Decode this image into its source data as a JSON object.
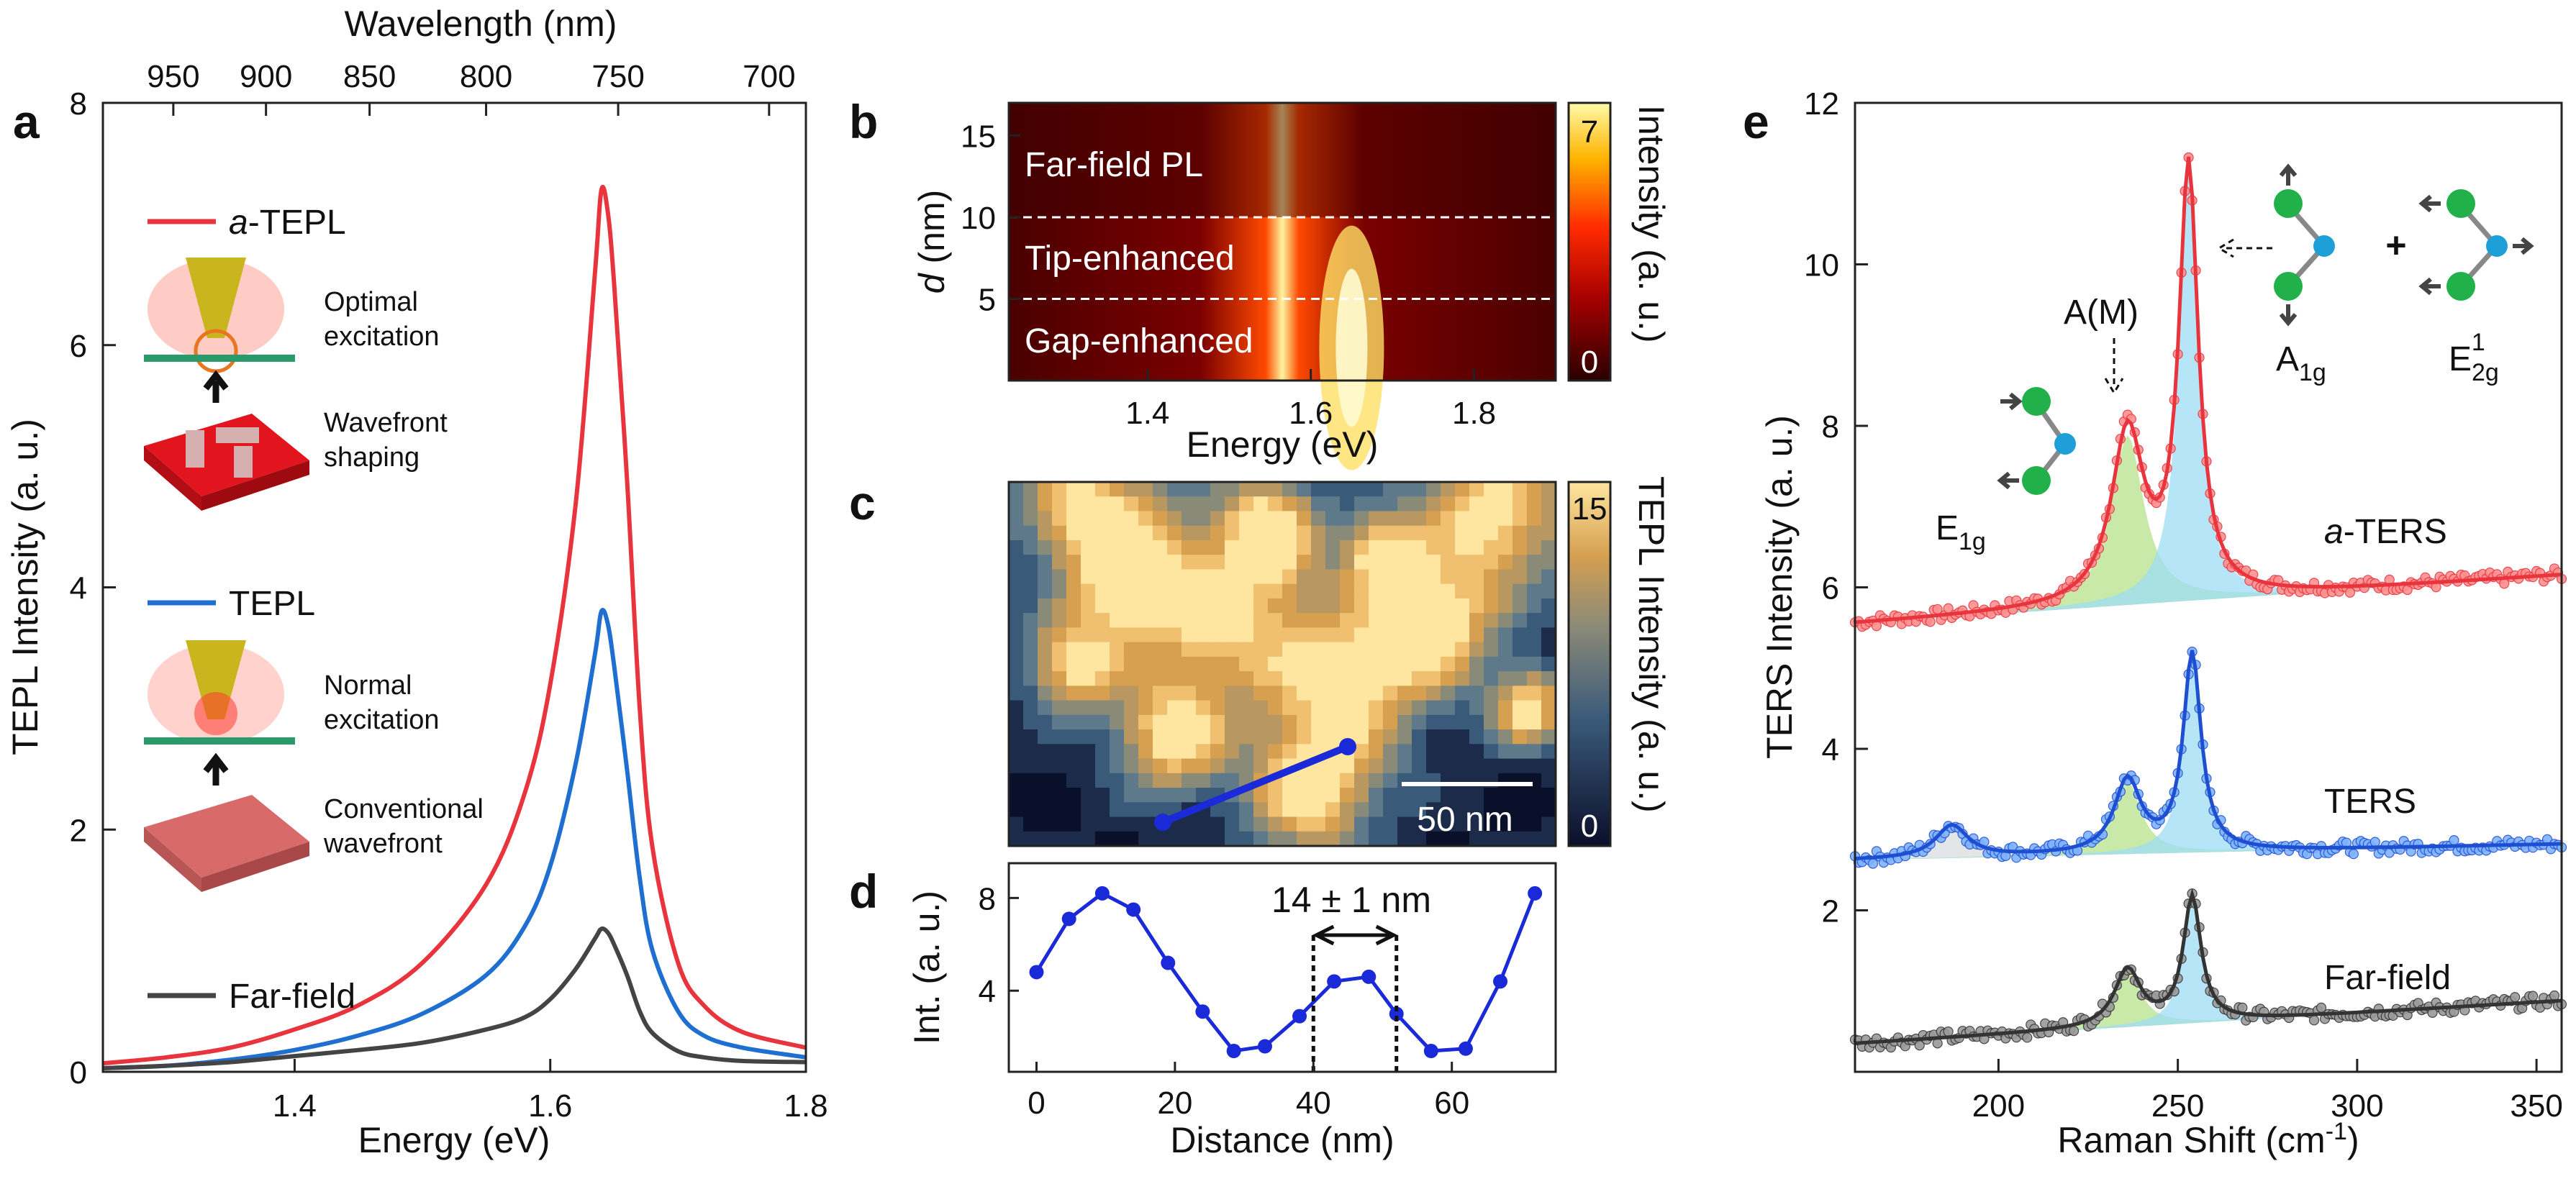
{
  "chart_data": [
    {
      "panel": "a",
      "type": "line",
      "xlabel": "Energy (eV)",
      "ylabel": "TEPL Intensity (a. u.)",
      "top_xlabel": "Wavelength (nm)",
      "xlim": [
        1.25,
        1.8
      ],
      "ylim": [
        0,
        8
      ],
      "xticks": [
        1.4,
        1.6,
        1.8
      ],
      "yticks": [
        0,
        2,
        4,
        6,
        8
      ],
      "top_ticks": [
        950,
        900,
        850,
        800,
        750,
        700
      ],
      "series": [
        {
          "name": "a-TEPL",
          "legend_prefix": "a",
          "legend_suffix": "-TEPL",
          "color": "#e8343c",
          "x": [
            1.25,
            1.3,
            1.35,
            1.4,
            1.45,
            1.5,
            1.55,
            1.58,
            1.6,
            1.62,
            1.635,
            1.64,
            1.645,
            1.65,
            1.66,
            1.67,
            1.68,
            1.7,
            1.72,
            1.75,
            1.8
          ],
          "y": [
            0.07,
            0.12,
            0.2,
            0.35,
            0.55,
            0.9,
            1.55,
            2.3,
            3.2,
            4.7,
            6.6,
            7.28,
            7.1,
            6.5,
            4.9,
            3.0,
            1.85,
            0.9,
            0.55,
            0.33,
            0.2
          ]
        },
        {
          "name": "TEPL",
          "legend_prefix": "",
          "legend_suffix": "TEPL",
          "color": "#1f6fd1",
          "x": [
            1.25,
            1.3,
            1.35,
            1.4,
            1.45,
            1.5,
            1.55,
            1.58,
            1.6,
            1.62,
            1.635,
            1.64,
            1.645,
            1.65,
            1.66,
            1.67,
            1.68,
            1.7,
            1.72,
            1.75,
            1.8
          ],
          "y": [
            0.03,
            0.05,
            0.1,
            0.18,
            0.3,
            0.48,
            0.8,
            1.2,
            1.7,
            2.55,
            3.45,
            3.8,
            3.7,
            3.35,
            2.5,
            1.6,
            1.0,
            0.5,
            0.3,
            0.2,
            0.12
          ]
        },
        {
          "name": "Far-field",
          "legend_prefix": "",
          "legend_suffix": "Far-field",
          "color": "#444444",
          "x": [
            1.25,
            1.3,
            1.35,
            1.4,
            1.45,
            1.5,
            1.55,
            1.58,
            1.6,
            1.62,
            1.635,
            1.64,
            1.645,
            1.65,
            1.66,
            1.67,
            1.68,
            1.7,
            1.72,
            1.75,
            1.8
          ],
          "y": [
            0.03,
            0.05,
            0.08,
            0.13,
            0.18,
            0.24,
            0.35,
            0.45,
            0.6,
            0.85,
            1.1,
            1.18,
            1.15,
            1.05,
            0.8,
            0.5,
            0.32,
            0.17,
            0.12,
            0.09,
            0.08
          ]
        }
      ],
      "insets": {
        "optimal": [
          "Optimal",
          "excitation"
        ],
        "wavefront": [
          "Wavefront",
          "shaping"
        ],
        "normal": [
          "Normal",
          "excitation"
        ],
        "conventional": [
          "Conventional",
          "wavefront"
        ]
      }
    },
    {
      "panel": "b",
      "type": "heatmap",
      "xlabel": "Energy (eV)",
      "ylabel_var": "d",
      "ylabel_unit": " (nm)",
      "xlim": [
        1.23,
        1.9
      ],
      "ylim": [
        0,
        17
      ],
      "xticks": [
        1.4,
        1.6,
        1.8
      ],
      "yticks": [
        5,
        10,
        15
      ],
      "peak_energy": 1.65,
      "boundaries": [
        5,
        10
      ],
      "regions": [
        "Far-field PL",
        "Tip-enhanced",
        "Gap-enhanced"
      ],
      "colorbar_label": "Intensity (a. u.)",
      "colorbar_range": [
        "0",
        "7"
      ]
    },
    {
      "panel": "c",
      "type": "heatmap",
      "colorbar_label": "TEPL Intensity (a. u.)",
      "colorbar_range": [
        "0",
        "15"
      ],
      "scalebar": "50 nm",
      "linecut_color": "#1a2ad8"
    },
    {
      "panel": "d",
      "type": "line",
      "xlabel": "Distance (nm)",
      "ylabel": "Int. (a. u.)",
      "xlim": [
        -4,
        75
      ],
      "ylim": [
        0.5,
        9.5
      ],
      "xticks": [
        0,
        20,
        40,
        60
      ],
      "yticks": [
        4,
        8
      ],
      "x": [
        0,
        4.7,
        9.5,
        14,
        19,
        24,
        28.5,
        33,
        38,
        43,
        48,
        52,
        57,
        62,
        67,
        72
      ],
      "y": [
        4.8,
        7.1,
        8.2,
        7.5,
        5.2,
        3.1,
        1.4,
        1.6,
        2.9,
        4.4,
        4.6,
        3.0,
        1.4,
        1.5,
        4.4,
        8.2
      ],
      "annotation": "14 ± 1 nm",
      "marker_x": [
        40,
        52
      ],
      "color": "#1a2ad8"
    },
    {
      "panel": "e",
      "type": "scatter",
      "xlabel": "Raman Shift (cm",
      "xlabel_sup": "-1",
      "xlabel_end": ")",
      "ylabel": "TERS Intensity (a. u.)",
      "xlim": [
        160,
        357
      ],
      "ylim": [
        0,
        12
      ],
      "xticks": [
        200,
        250,
        300,
        350
      ],
      "yticks": [
        2,
        4,
        6,
        8,
        10,
        12
      ],
      "series": [
        {
          "name": "a-TERS",
          "label_prefix": "a",
          "label_suffix": "-TERS",
          "color": "#e8343c",
          "fill": "#ff9090",
          "baseline": [
            5.55,
            6.15
          ],
          "p1": {
            "x": 236,
            "a": 2.1,
            "w": 11
          },
          "p2": {
            "x": 253,
            "a": 5.3,
            "w": 6.5
          },
          "p3": null
        },
        {
          "name": "TERS",
          "label_prefix": "",
          "label_suffix": "TERS",
          "color": "#1f4fd1",
          "fill": "#7fb3ff",
          "baseline": [
            2.62,
            2.82
          ],
          "p1": {
            "x": 236,
            "a": 0.9,
            "w": 9
          },
          "p2": {
            "x": 254,
            "a": 2.45,
            "w": 6
          },
          "p3": {
            "x": 187,
            "a": 0.4,
            "w": 11
          }
        },
        {
          "name": "Far-field",
          "label_prefix": "",
          "label_suffix": "Far-field",
          "color": "#333333",
          "fill": "#9a9a9a",
          "baseline": [
            0.35,
            0.88
          ],
          "p1": {
            "x": 236,
            "a": 0.7,
            "w": 9
          },
          "p2": {
            "x": 254,
            "a": 1.55,
            "w": 6
          },
          "p3": null
        }
      ],
      "peak_labels": {
        "am": "A(M)",
        "a1g_main": "A",
        "a1g_sub": "1g",
        "e2g_main": "E",
        "e2g_sub": "2g",
        "e2g_sup": "1",
        "e1g_main": "E",
        "e1g_sub": "1g",
        "plus": "+"
      }
    }
  ]
}
